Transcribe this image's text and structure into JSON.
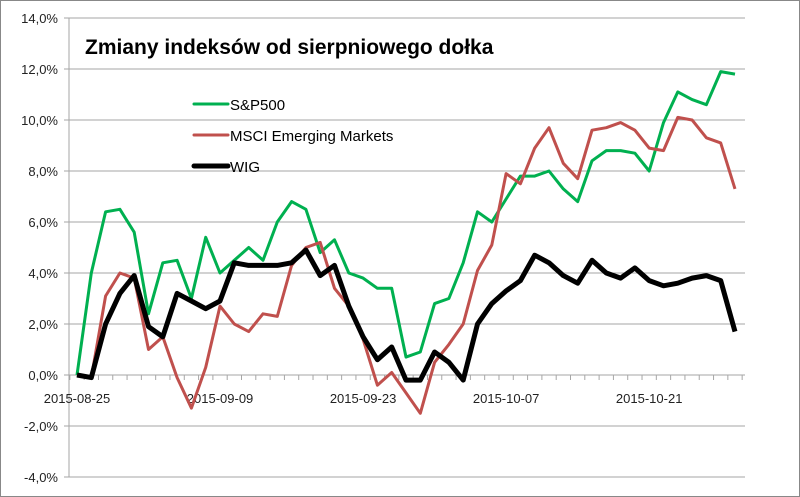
{
  "chart_data": {
    "type": "line",
    "title": "Zmiany indeksów od sierpniowego dołka",
    "xlabel": "",
    "ylabel": "",
    "ylim": [
      -4,
      14
    ],
    "y_ticks": [
      -4,
      -2,
      0,
      2,
      4,
      6,
      8,
      10,
      12,
      14
    ],
    "y_tick_labels": [
      "-4,0%",
      "-2,0%",
      "0,0%",
      "2,0%",
      "4,0%",
      "6,0%",
      "8,0%",
      "10,0%",
      "12,0%",
      "14,0%"
    ],
    "grid": true,
    "legend_position": "top-left",
    "x": [
      "2015-08-25",
      "2015-08-26",
      "2015-08-27",
      "2015-08-28",
      "2015-08-31",
      "2015-09-01",
      "2015-09-02",
      "2015-09-03",
      "2015-09-04",
      "2015-09-08",
      "2015-09-09",
      "2015-09-10",
      "2015-09-11",
      "2015-09-14",
      "2015-09-15",
      "2015-09-16",
      "2015-09-17",
      "2015-09-18",
      "2015-09-21",
      "2015-09-22",
      "2015-09-23",
      "2015-09-24",
      "2015-09-25",
      "2015-09-28",
      "2015-09-29",
      "2015-09-30",
      "2015-10-01",
      "2015-10-02",
      "2015-10-05",
      "2015-10-06",
      "2015-10-07",
      "2015-10-08",
      "2015-10-09",
      "2015-10-12",
      "2015-10-13",
      "2015-10-14",
      "2015-10-15",
      "2015-10-16",
      "2015-10-19",
      "2015-10-20",
      "2015-10-21",
      "2015-10-22",
      "2015-10-23",
      "2015-10-26",
      "2015-10-27",
      "2015-10-28",
      "2015-10-29"
    ],
    "x_tick_labels": [
      {
        "index": 0,
        "label": "2015-08-25"
      },
      {
        "index": 10,
        "label": "2015-09-09"
      },
      {
        "index": 20,
        "label": "2015-09-23"
      },
      {
        "index": 30,
        "label": "2015-10-07"
      },
      {
        "index": 40,
        "label": "2015-10-21"
      }
    ],
    "series": [
      {
        "name": "S&P500",
        "color": "#00b050",
        "values": [
          0.0,
          4.0,
          6.4,
          6.5,
          5.6,
          2.4,
          4.4,
          4.5,
          3.0,
          5.4,
          4.0,
          4.5,
          5.0,
          4.5,
          6.0,
          6.8,
          6.5,
          4.8,
          5.3,
          4.0,
          3.8,
          3.4,
          3.4,
          0.7,
          0.9,
          2.8,
          3.0,
          4.4,
          6.4,
          6.0,
          6.9,
          7.8,
          7.8,
          8.0,
          7.3,
          6.8,
          8.4,
          8.8,
          8.8,
          8.7,
          8.0,
          9.9,
          11.1,
          10.8,
          10.6,
          11.9,
          11.8
        ]
      },
      {
        "name": "MSCI Emerging Markets",
        "color": "#c0504d",
        "values": [
          0.0,
          -0.1,
          3.1,
          4.0,
          3.8,
          1.0,
          1.5,
          -0.1,
          -1.3,
          0.3,
          2.7,
          2.0,
          1.7,
          2.4,
          2.3,
          4.3,
          5.0,
          5.2,
          3.4,
          2.7,
          1.4,
          -0.4,
          0.1,
          -0.7,
          -1.5,
          0.5,
          1.2,
          2.0,
          4.1,
          5.1,
          7.9,
          7.5,
          8.9,
          9.7,
          8.3,
          7.7,
          9.6,
          9.7,
          9.9,
          9.6,
          8.9,
          8.8,
          10.1,
          10.0,
          9.3,
          9.1,
          7.3
        ]
      },
      {
        "name": "WIG",
        "color": "#000000",
        "values": [
          0.0,
          -0.1,
          2.0,
          3.2,
          3.9,
          1.9,
          1.5,
          3.2,
          2.9,
          2.6,
          2.9,
          4.4,
          4.3,
          4.3,
          4.3,
          4.4,
          4.9,
          3.9,
          4.3,
          2.7,
          1.5,
          0.6,
          1.1,
          -0.2,
          -0.2,
          0.9,
          0.5,
          -0.2,
          2.0,
          2.8,
          3.3,
          3.7,
          4.7,
          4.4,
          3.9,
          3.6,
          4.5,
          4.0,
          3.8,
          4.2,
          3.7,
          3.5,
          3.6,
          3.8,
          3.9,
          3.7,
          1.7
        ]
      }
    ]
  }
}
